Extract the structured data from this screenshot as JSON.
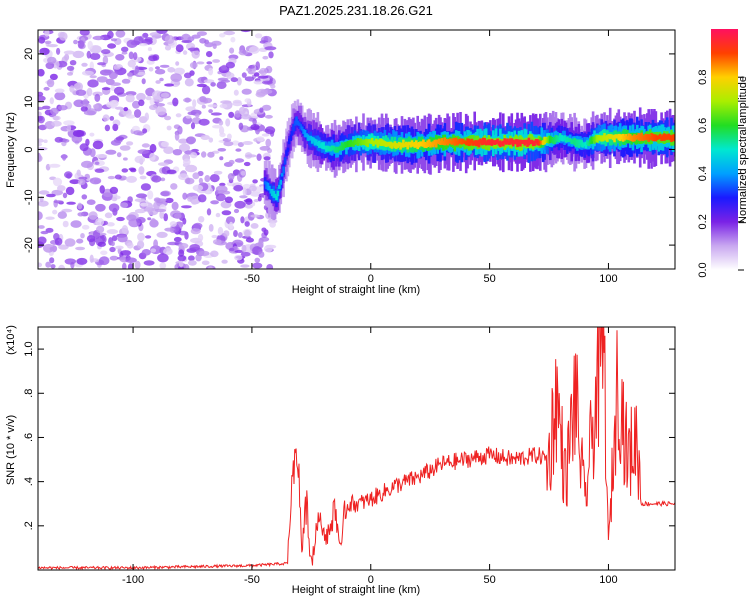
{
  "title": "PAZ1.2025.231.18.26.G21",
  "chart_data": [
    {
      "type": "heatmap",
      "name": "spectrogram",
      "xlabel": "Height of straight line (km)",
      "ylabel": "Frequency (Hz)",
      "xlim": [
        -140,
        128
      ],
      "ylim": [
        -25,
        25
      ],
      "xticks": [
        -100,
        -50,
        0,
        50,
        100
      ],
      "yticks": [
        -20,
        -10,
        0,
        10,
        20
      ],
      "ridge": {
        "description": "dominant frequency band",
        "x": [
          -45,
          -42,
          -40,
          -38,
          -36,
          -34,
          -32,
          -30,
          -28,
          -25,
          -20,
          -15,
          -10,
          -5,
          0,
          10,
          20,
          30,
          40,
          50,
          60,
          70,
          75,
          80,
          85,
          90,
          95,
          100,
          110,
          120,
          128
        ],
        "y": [
          -7,
          -9,
          -10,
          -6,
          -1,
          3,
          6,
          5,
          3,
          2,
          0.5,
          0,
          1,
          1.5,
          1.5,
          1,
          1,
          1.5,
          1.5,
          1.5,
          1.5,
          1.5,
          2,
          2.5,
          1.5,
          1,
          2.5,
          2.5,
          2.5,
          2.5,
          2.5
        ],
        "amplitude": [
          0.35,
          0.45,
          0.5,
          0.4,
          0.3,
          0.3,
          0.35,
          0.35,
          0.4,
          0.45,
          0.5,
          0.55,
          0.6,
          0.65,
          0.7,
          0.75,
          0.8,
          0.85,
          0.9,
          0.95,
          0.95,
          0.95,
          0.6,
          0.5,
          0.55,
          0.5,
          0.7,
          0.75,
          0.85,
          0.9,
          0.9
        ]
      },
      "noise_region": {
        "x_from": -140,
        "x_to": -45,
        "amplitude": 0.1
      },
      "colorbar": {
        "label": "Normalized spectral amplitude",
        "range": [
          0,
          1
        ],
        "ticks": [
          0.0,
          0.2,
          0.4,
          0.6,
          0.8
        ]
      }
    },
    {
      "type": "line",
      "name": "snr",
      "xlabel": "Height of straight line (km)",
      "ylabel": "SNR (10 * v/v)",
      "yscale_label": "(x10⁴)",
      "xlim": [
        -140,
        128
      ],
      "ylim": [
        0,
        1.1
      ],
      "xticks": [
        -100,
        -50,
        0,
        50,
        100
      ],
      "yticks": [
        0.2,
        0.4,
        0.6,
        0.8,
        1.0
      ],
      "color": "#ee2222",
      "series": [
        {
          "name": "SNR",
          "x": [
            -140,
            -100,
            -50,
            -35,
            -33,
            -31,
            -29,
            -27,
            -25,
            -22,
            -18,
            -15,
            -13,
            -10,
            -5,
            0,
            5,
            10,
            20,
            30,
            40,
            50,
            60,
            70,
            75,
            78,
            82,
            86,
            90,
            94,
            98,
            100,
            104,
            108,
            112,
            114,
            118,
            128
          ],
          "y": [
            0.01,
            0.01,
            0.02,
            0.03,
            0.4,
            0.6,
            0.1,
            0.3,
            0.02,
            0.25,
            0.15,
            0.3,
            0.1,
            0.3,
            0.3,
            0.32,
            0.35,
            0.38,
            0.42,
            0.48,
            0.5,
            0.52,
            0.5,
            0.52,
            0.5,
            0.8,
            0.4,
            0.8,
            0.3,
            0.7,
            1.05,
            0.1,
            0.9,
            0.5,
            0.6,
            0.3,
            0.3,
            0.3
          ]
        }
      ]
    }
  ]
}
